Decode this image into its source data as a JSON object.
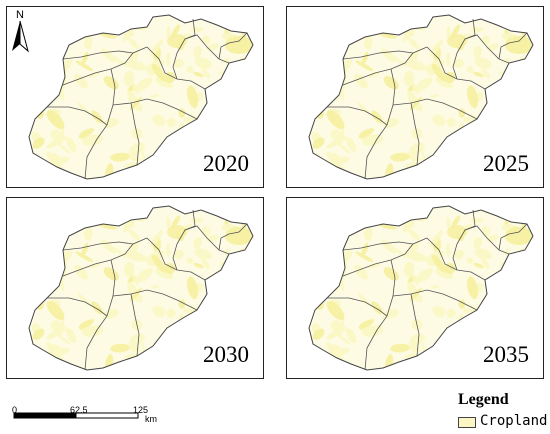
{
  "panels": [
    {
      "year": "2020"
    },
    {
      "year": "2025"
    },
    {
      "year": "2030"
    },
    {
      "year": "2035"
    }
  ],
  "north_arrow": {
    "label": "N"
  },
  "scale_bar": {
    "ticks": [
      "0",
      "62.5",
      "125"
    ],
    "unit": "km"
  },
  "legend": {
    "title": "Legend",
    "items": [
      {
        "label": "Cropland",
        "color": "#fbf7c4"
      }
    ]
  },
  "colors": {
    "cropland": "#fbf7c4",
    "cropland_dense": "#f6ef9e",
    "boundary": "#555555"
  }
}
